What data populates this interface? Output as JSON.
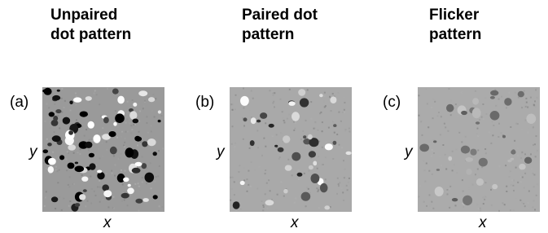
{
  "panels": [
    {
      "title": [
        "Unpaired",
        "dot pattern"
      ],
      "label": "(a)",
      "y_label": "y",
      "x_label": "x"
    },
    {
      "title": [
        "Paired dot",
        "pattern"
      ],
      "label": "(b)",
      "y_label": "y",
      "x_label": "x"
    },
    {
      "title": [
        "Flicker",
        "pattern"
      ],
      "label": "(c)",
      "y_label": "y",
      "x_label": "x"
    }
  ]
}
